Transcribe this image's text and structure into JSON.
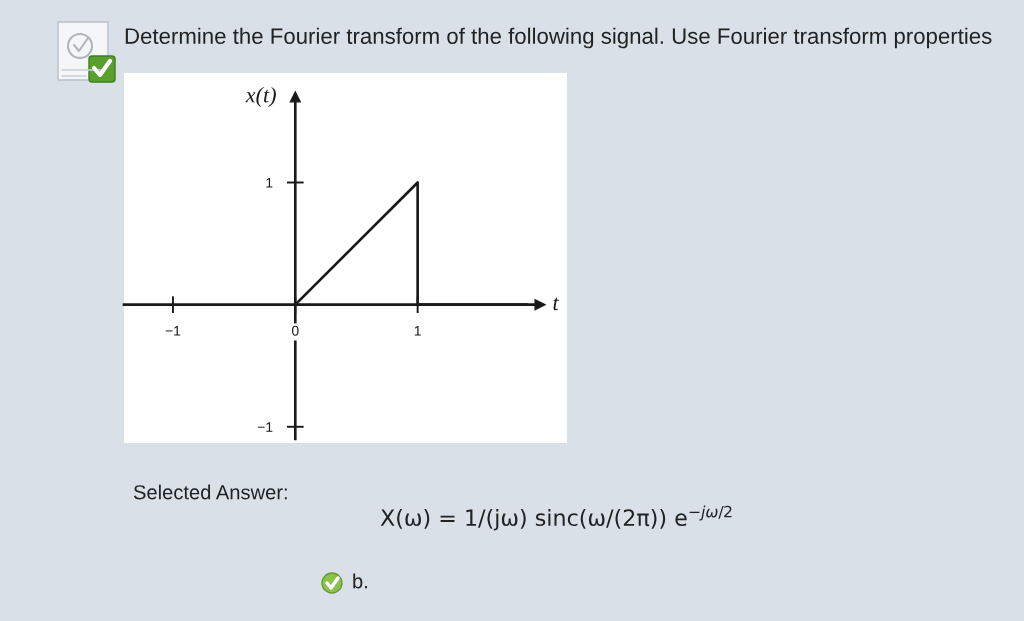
{
  "chart_data": {
    "type": "line",
    "title": "Determine the Fourier transform of the following signal. Use Fourier transform properties",
    "xlabel": "t",
    "ylabel": "x(t)",
    "annotations": [
      "Selected Answer:",
      "X(ω) = 1/(jω) sinc(ω/(2π)) e$^{−jω/2}$",
      "b."
    ],
    "series": [
      {
        "color": "#1a1a1a",
        "x": [
          0,
          1,
          1,
          1.9
        ],
        "values": [
          0,
          1,
          0,
          0
        ]
      }
    ],
    "xlim": [
      -1.4,
      2.0
    ],
    "ylim": [
      -1.1,
      1.7
    ],
    "xticks": [
      {
        "value": -1,
        "label": "−1"
      },
      0,
      1
    ],
    "yticks": [
      {
        "value": -1,
        "label": "−1"
      },
      1
    ]
  }
}
